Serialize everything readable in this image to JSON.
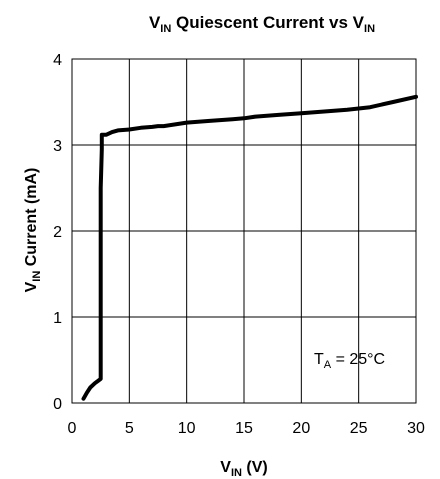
{
  "chart_data": {
    "type": "line",
    "title": {
      "main": "V",
      "sub": "IN",
      "rest": " Quiescent Current vs V",
      "sub2": "IN"
    },
    "xlabel": {
      "main": "V",
      "sub": "IN",
      "rest": " (V)"
    },
    "ylabel": {
      "main": "V",
      "sub": "IN",
      "rest": " Current (mA)"
    },
    "xlim": [
      0,
      30
    ],
    "ylim": [
      0,
      4
    ],
    "xticks": [
      0,
      5,
      10,
      15,
      20,
      25,
      30
    ],
    "yticks": [
      0,
      1,
      2,
      3,
      4
    ],
    "grid": true,
    "annotation": {
      "main": "T",
      "sub": "A",
      "rest": " = 25°C"
    },
    "series": [
      {
        "x": [
          1.0,
          1.3,
          1.6,
          2.0,
          2.3,
          2.5,
          2.5,
          2.55,
          2.6,
          2.6,
          3.0,
          3.5,
          4.0,
          5.0,
          6.0,
          7.0,
          7.5,
          8.0,
          9.0,
          10.0,
          12.0,
          14.0,
          15.0,
          16.0,
          18.0,
          20.0,
          22.0,
          24.0,
          26.0,
          28.0,
          30.0
        ],
        "y": [
          0.05,
          0.12,
          0.18,
          0.23,
          0.26,
          0.28,
          2.5,
          2.7,
          2.95,
          3.12,
          3.12,
          3.15,
          3.17,
          3.18,
          3.2,
          3.21,
          3.22,
          3.22,
          3.24,
          3.26,
          3.28,
          3.3,
          3.31,
          3.33,
          3.35,
          3.37,
          3.39,
          3.41,
          3.44,
          3.5,
          3.56
        ]
      }
    ]
  }
}
